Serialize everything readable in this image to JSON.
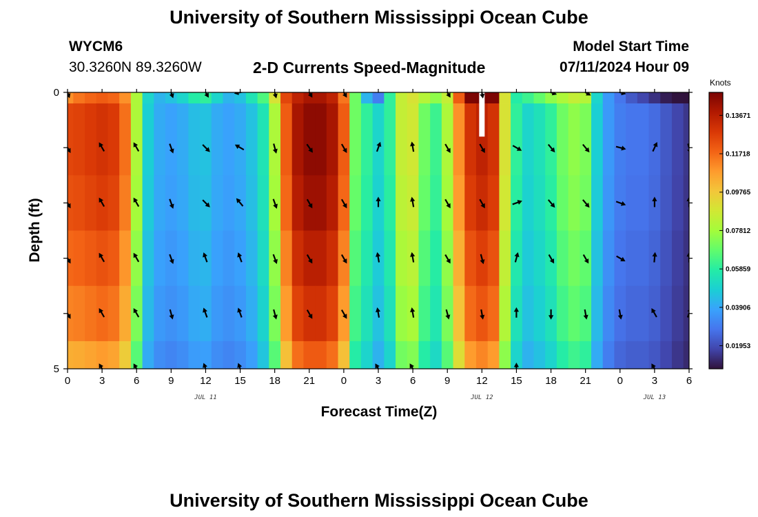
{
  "header": {
    "title": "University of Southern Mississippi Ocean Cube",
    "station": "WYCM6",
    "coords": "30.3260N  89.3260W",
    "variable": "2-D Currents Speed-Magnitude",
    "model_start_label": "Model Start Time",
    "model_start_value": "07/11/2024 Hour 09"
  },
  "footer": {
    "title": "University of Southern Mississippi Ocean Cube"
  },
  "chart_data": {
    "type": "heatmap",
    "title": "2-D Currents Speed-Magnitude",
    "xlabel": "Forecast Time(Z)",
    "ylabel": "Depth (ft)",
    "x_tick_labels": [
      "0",
      "3",
      "6",
      "9",
      "12",
      "15",
      "18",
      "21",
      "0",
      "3",
      "6",
      "9",
      "12",
      "15",
      "18",
      "21",
      "0",
      "3",
      "6"
    ],
    "date_labels": [
      {
        "label": "JUL 11",
        "hour": 12
      },
      {
        "label": "JUL 12",
        "hour": 36
      },
      {
        "label": "JUL 13",
        "hour": 51
      }
    ],
    "y_tick_labels": [
      {
        "value": 0,
        "label": "0"
      },
      {
        "value": 5,
        "label": "5"
      }
    ],
    "x_range_hours": [
      0,
      54
    ],
    "depth_range_ft": [
      0,
      5
    ],
    "depth_levels": 5,
    "colorbar": {
      "unit": "Knots",
      "range": [
        0.0078,
        0.1484
      ],
      "ticks": [
        "0.13671",
        "0.11718",
        "0.09765",
        "0.07812",
        "0.05859",
        "0.03906",
        "0.01953"
      ],
      "tick_values": [
        0.13671,
        0.11718,
        0.09765,
        0.07812,
        0.05859,
        0.03906,
        0.01953
      ],
      "palette": [
        "#30123b",
        "#4145ab",
        "#4675ed",
        "#39a2fc",
        "#1bcfd4",
        "#24eca6",
        "#61fc6c",
        "#a4fc3b",
        "#d1e834",
        "#f3c63a",
        "#fe9b2d",
        "#f36315",
        "#d93806",
        "#b11901",
        "#7a0403"
      ]
    },
    "hourly_speed_knots": [
      0.125,
      0.126,
      0.128,
      0.13,
      0.128,
      0.116,
      0.08,
      0.048,
      0.04,
      0.038,
      0.04,
      0.044,
      0.045,
      0.04,
      0.038,
      0.04,
      0.045,
      0.055,
      0.08,
      0.12,
      0.14,
      0.145,
      0.145,
      0.14,
      0.12,
      0.07,
      0.06,
      0.05,
      0.06,
      0.085,
      0.088,
      0.07,
      0.062,
      0.08,
      0.11,
      0.13,
      0.135,
      0.13,
      0.09,
      0.06,
      0.05,
      0.054,
      0.06,
      0.07,
      0.075,
      0.072,
      0.048,
      0.036,
      0.03,
      0.028,
      0.028,
      0.026,
      0.022,
      0.018,
      0.015
    ],
    "surface_speed_knots": [
      0.11,
      0.115,
      0.118,
      0.12,
      0.118,
      0.11,
      0.08,
      0.05,
      0.042,
      0.045,
      0.05,
      0.058,
      0.06,
      0.05,
      0.042,
      0.045,
      0.055,
      0.065,
      0.09,
      0.125,
      0.135,
      0.14,
      0.14,
      0.135,
      0.115,
      0.07,
      0.042,
      0.03,
      0.06,
      0.085,
      0.09,
      0.082,
      0.075,
      0.085,
      0.12,
      0.148,
      0.15,
      0.148,
      0.09,
      0.058,
      0.062,
      0.068,
      0.075,
      0.08,
      0.085,
      0.082,
      0.05,
      0.036,
      0.028,
      0.022,
      0.018,
      0.014,
      0.01,
      0.008,
      0.006
    ],
    "depth_factor": [
      1.0,
      0.98,
      0.94,
      0.9,
      0.83
    ],
    "vectors": [
      {
        "hour": 0,
        "angles": [
          160,
          150,
          150,
          150,
          150,
          null
        ]
      },
      {
        "hour": 3,
        "angles": [
          null,
          330,
          330,
          330,
          330,
          330
        ]
      },
      {
        "hour": 6,
        "angles": [
          null,
          330,
          330,
          330,
          330,
          330
        ]
      },
      {
        "hour": 9,
        "angles": [
          160,
          160,
          160,
          160,
          165,
          null
        ]
      },
      {
        "hour": 12,
        "angles": [
          150,
          135,
          135,
          340,
          340,
          340
        ]
      },
      {
        "hour": 15,
        "angles": [
          260,
          300,
          320,
          340,
          340,
          340
        ]
      },
      {
        "hour": 18,
        "angles": [
          165,
          165,
          160,
          160,
          165,
          null
        ]
      },
      {
        "hour": 21,
        "angles": [
          150,
          145,
          150,
          150,
          150,
          null
        ]
      },
      {
        "hour": 24,
        "angles": [
          150,
          150,
          150,
          150,
          150,
          null
        ]
      },
      {
        "hour": 27,
        "angles": [
          null,
          20,
          0,
          350,
          350,
          330
        ]
      },
      {
        "hour": 30,
        "angles": [
          null,
          350,
          350,
          350,
          350,
          330
        ]
      },
      {
        "hour": 33,
        "angles": [
          150,
          150,
          150,
          150,
          165,
          null
        ]
      },
      {
        "hour": 36,
        "angles": [
          170,
          150,
          150,
          165,
          170,
          null
        ]
      },
      {
        "hour": 39,
        "angles": [
          null,
          120,
          70,
          15,
          0,
          0
        ]
      },
      {
        "hour": 42,
        "angles": [
          110,
          140,
          140,
          150,
          180,
          null
        ]
      },
      {
        "hour": 45,
        "angles": [
          120,
          140,
          140,
          150,
          170,
          null
        ]
      },
      {
        "hour": 48,
        "angles": [
          105,
          105,
          110,
          120,
          170,
          null
        ]
      },
      {
        "hour": 51,
        "angles": [
          null,
          25,
          0,
          5,
          330,
          330
        ]
      },
      {
        "hour": 54,
        "angles": [
          null,
          165,
          0,
          0,
          20,
          70
        ]
      }
    ]
  }
}
